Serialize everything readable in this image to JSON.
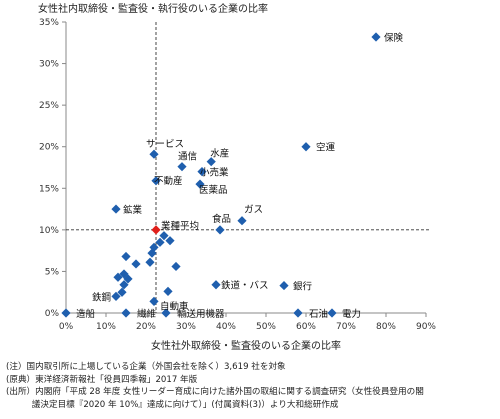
{
  "chart_data": {
    "type": "scatter",
    "title": "女性社内取締役・監査役・執行役のいる企業の比率",
    "xlabel": "女性社外取締役・監査役のいる企業の比率",
    "ylabel": "",
    "xlim": [
      0,
      90
    ],
    "ylim": [
      0,
      35
    ],
    "x_ticks": [
      "0%",
      "10%",
      "20%",
      "30%",
      "40%",
      "50%",
      "60%",
      "70%",
      "80%",
      "90%"
    ],
    "y_ticks": [
      "0%",
      "5%",
      "10%",
      "15%",
      "20%",
      "25%",
      "30%",
      "35%"
    ],
    "grid": false,
    "marker_color": "#1f5fae",
    "average_color": "#e0201b",
    "reference_lines": {
      "x": 22.5,
      "y": 10
    },
    "labeled_points": [
      {
        "label": "保険",
        "x": 77.5,
        "y": 33.2
      },
      {
        "label": "空運",
        "x": 60.0,
        "y": 20.0
      },
      {
        "label": "サービス",
        "x": 22.0,
        "y": 19.1
      },
      {
        "label": "水産",
        "x": 36.3,
        "y": 18.2
      },
      {
        "label": "通信",
        "x": 29.0,
        "y": 17.6
      },
      {
        "label": "小売業",
        "x": 34.0,
        "y": 17.0
      },
      {
        "label": "不動産",
        "x": 22.5,
        "y": 15.9
      },
      {
        "label": "医薬品",
        "x": 33.5,
        "y": 15.5
      },
      {
        "label": "鉱業",
        "x": 12.5,
        "y": 12.5
      },
      {
        "label": "ガス",
        "x": 44.0,
        "y": 11.1
      },
      {
        "label": "食品",
        "x": 38.5,
        "y": 10.0
      },
      {
        "label": "業種平均",
        "x": 22.5,
        "y": 10.0
      },
      {
        "label": "鉄道・バス",
        "x": 37.5,
        "y": 3.4
      },
      {
        "label": "銀行",
        "x": 54.5,
        "y": 3.3
      },
      {
        "label": "鉄鋼",
        "x": 12.5,
        "y": 2.0
      },
      {
        "label": "自動車",
        "x": 22.0,
        "y": 1.4
      },
      {
        "label": "造船",
        "x": 0.0,
        "y": 0.0
      },
      {
        "label": "繊維",
        "x": 15.0,
        "y": 0.0
      },
      {
        "label": "輸送用機器",
        "x": 25.0,
        "y": 0.0
      },
      {
        "label": "石油",
        "x": 58.0,
        "y": 0.0
      },
      {
        "label": "電力",
        "x": 66.5,
        "y": 0.0
      }
    ],
    "unlabeled_points": [
      {
        "x": 15.0,
        "y": 6.8
      },
      {
        "x": 17.5,
        "y": 5.9
      },
      {
        "x": 21.0,
        "y": 6.1
      },
      {
        "x": 21.5,
        "y": 7.2
      },
      {
        "x": 22.0,
        "y": 7.9
      },
      {
        "x": 23.5,
        "y": 8.5
      },
      {
        "x": 24.5,
        "y": 9.3
      },
      {
        "x": 26.0,
        "y": 8.7
      },
      {
        "x": 27.5,
        "y": 5.6
      },
      {
        "x": 14.5,
        "y": 4.7
      },
      {
        "x": 15.5,
        "y": 4.1
      },
      {
        "x": 13.0,
        "y": 4.3
      },
      {
        "x": 14.5,
        "y": 3.4
      },
      {
        "x": 14.0,
        "y": 2.5
      },
      {
        "x": 25.5,
        "y": 2.6
      }
    ]
  },
  "notes": [
    "(注）国内取引所に上場している企業（外国会社を除く）3,619 社を対象",
    "(原典）東洋経済新報社「役員四季報」2017 年版",
    "(出所）内閣府「平成 28 年度 女性リーダー育成に向けた諸外国の取組に関する調査研究（女性役員登用の閣",
    "　　　議決定目標『2020 年 10%』達成に向けて）」(付属資料(3)）より大和総研作成"
  ]
}
